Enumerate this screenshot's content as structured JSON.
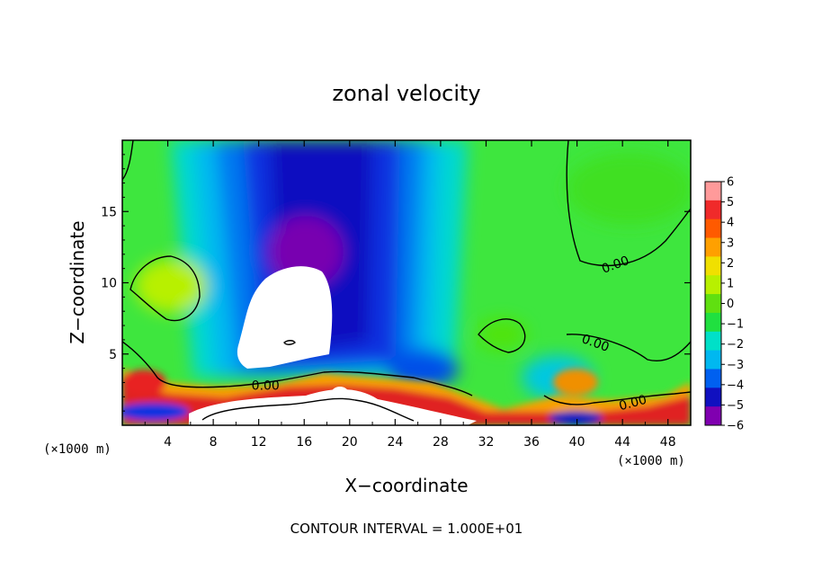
{
  "chart_data": {
    "type": "heatmap",
    "title": "zonal velocity",
    "xlabel": "X−coordinate",
    "ylabel": "Z−coordinate",
    "x_unit_label": "(×1000 m)",
    "x_unit_label_right": "(×1000 m)",
    "xlim": [
      0,
      50
    ],
    "ylim": [
      0,
      20
    ],
    "x_ticks": [
      4,
      8,
      12,
      16,
      20,
      24,
      28,
      32,
      36,
      40,
      44,
      48
    ],
    "y_ticks": [
      5,
      10,
      15
    ],
    "contour_interval_text": "CONTOUR INTERVAL = 1.000E+01",
    "contour_labels": [
      {
        "text": "0.00",
        "x": 43.5,
        "y": 11.0,
        "angle": -20
      },
      {
        "text": "0.00",
        "x": 41.5,
        "y": 5.5,
        "angle": 20
      },
      {
        "text": "0.00",
        "x": 45.0,
        "y": 1.3,
        "angle": -15
      },
      {
        "text": "0.00",
        "x": 12.6,
        "y": 2.5,
        "angle": 0
      }
    ],
    "colorbar": {
      "levels": [
        "6",
        "5",
        "4",
        "3",
        "2",
        "1",
        "0",
        "−1",
        "−2",
        "−3",
        "−4",
        "−5",
        "−6"
      ],
      "colors": [
        "#ff9a9a",
        "#f02a2a",
        "#ff5a00",
        "#ffa000",
        "#f0e000",
        "#b8f000",
        "#60e010",
        "#20e040",
        "#00e0c8",
        "#00b8f0",
        "#0060f0",
        "#1010c0",
        "#8000b0"
      ]
    }
  }
}
